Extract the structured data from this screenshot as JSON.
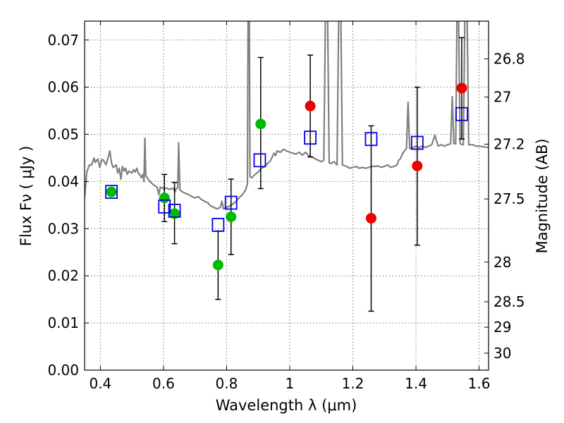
{
  "chart_data": {
    "type": "scatter",
    "xlabel": "Wavelength  λ (μm)",
    "ylabel": "Flux  Fν  ( μJy )",
    "y2label": "Magnitude (AB)",
    "xlim": [
      0.35,
      1.63
    ],
    "ylim": [
      0.0,
      0.074
    ],
    "grid": true,
    "x_ticks": [
      0.4,
      0.6,
      0.8,
      1.0,
      1.2,
      1.4,
      1.6
    ],
    "x_tick_labels": [
      "0.4",
      "0.6",
      "0.8",
      "1",
      "1.2",
      "1.4",
      "1.6"
    ],
    "y_ticks": [
      0.0,
      0.01,
      0.02,
      0.03,
      0.04,
      0.05,
      0.06,
      0.07
    ],
    "y_tick_labels": [
      "0.00",
      "0.01",
      "0.02",
      "0.03",
      "0.04",
      "0.05",
      "0.06",
      "0.07"
    ],
    "mag_ticks": [
      {
        "label": "26.8",
        "flux": 0.066
      },
      {
        "label": "27",
        "flux": 0.0579
      },
      {
        "label": "27.2",
        "flux": 0.0479
      },
      {
        "label": "27.5",
        "flux": 0.0363
      },
      {
        "label": "28",
        "flux": 0.0229
      },
      {
        "label": "28.5",
        "flux": 0.0145
      },
      {
        "label": "29",
        "flux": 0.0091
      },
      {
        "label": "30",
        "flux": 0.0036
      }
    ],
    "colors": {
      "sed": "#808080",
      "green": "#00bb00",
      "red": "#ee0000",
      "model": "#0000ee",
      "errorbar": "#000000",
      "grid": "#777777"
    },
    "sed_curve": [
      [
        0.35,
        0.0365
      ],
      [
        0.357,
        0.042
      ],
      [
        0.365,
        0.0435
      ],
      [
        0.372,
        0.0435
      ],
      [
        0.38,
        0.045
      ],
      [
        0.384,
        0.044
      ],
      [
        0.392,
        0.0448
      ],
      [
        0.398,
        0.043
      ],
      [
        0.405,
        0.0447
      ],
      [
        0.41,
        0.0445
      ],
      [
        0.418,
        0.0435
      ],
      [
        0.425,
        0.0452
      ],
      [
        0.43,
        0.0465
      ],
      [
        0.435,
        0.044
      ],
      [
        0.44,
        0.043
      ],
      [
        0.445,
        0.0432
      ],
      [
        0.45,
        0.0435
      ],
      [
        0.455,
        0.0418
      ],
      [
        0.46,
        0.0428
      ],
      [
        0.465,
        0.0405
      ],
      [
        0.47,
        0.0432
      ],
      [
        0.475,
        0.0422
      ],
      [
        0.48,
        0.0428
      ],
      [
        0.485,
        0.0415
      ],
      [
        0.49,
        0.0422
      ],
      [
        0.5,
        0.0418
      ],
      [
        0.505,
        0.0425
      ],
      [
        0.51,
        0.042
      ],
      [
        0.515,
        0.0428
      ],
      [
        0.52,
        0.0418
      ],
      [
        0.525,
        0.0415
      ],
      [
        0.53,
        0.0408
      ],
      [
        0.535,
        0.0415
      ],
      [
        0.538,
        0.04
      ],
      [
        0.541,
        0.0492
      ],
      [
        0.544,
        0.0412
      ],
      [
        0.55,
        0.0406
      ],
      [
        0.56,
        0.0398
      ],
      [
        0.57,
        0.0392
      ],
      [
        0.58,
        0.0388
      ],
      [
        0.585,
        0.0372
      ],
      [
        0.59,
        0.0388
      ],
      [
        0.6,
        0.0385
      ],
      [
        0.61,
        0.0386
      ],
      [
        0.62,
        0.0383
      ],
      [
        0.63,
        0.0386
      ],
      [
        0.637,
        0.0378
      ],
      [
        0.64,
        0.0385
      ],
      [
        0.645,
        0.0386
      ],
      [
        0.648,
        0.0482
      ],
      [
        0.652,
        0.0382
      ],
      [
        0.66,
        0.0378
      ],
      [
        0.67,
        0.0375
      ],
      [
        0.68,
        0.0372
      ],
      [
        0.69,
        0.0368
      ],
      [
        0.7,
        0.0365
      ],
      [
        0.71,
        0.0368
      ],
      [
        0.72,
        0.0362
      ],
      [
        0.73,
        0.0358
      ],
      [
        0.74,
        0.0355
      ],
      [
        0.75,
        0.0348
      ],
      [
        0.76,
        0.0345
      ],
      [
        0.77,
        0.0342
      ],
      [
        0.78,
        0.0345
      ],
      [
        0.785,
        0.0358
      ],
      [
        0.79,
        0.0342
      ],
      [
        0.8,
        0.0345
      ],
      [
        0.81,
        0.0348
      ],
      [
        0.82,
        0.0352
      ],
      [
        0.83,
        0.0358
      ],
      [
        0.84,
        0.0366
      ],
      [
        0.85,
        0.0372
      ],
      [
        0.86,
        0.0382
      ],
      [
        0.866,
        0.0395
      ],
      [
        0.868,
        0.075
      ],
      [
        0.872,
        0.075
      ],
      [
        0.874,
        0.041
      ],
      [
        0.88,
        0.0408
      ],
      [
        0.89,
        0.0415
      ],
      [
        0.9,
        0.042
      ],
      [
        0.91,
        0.0428
      ],
      [
        0.92,
        0.0432
      ],
      [
        0.93,
        0.0438
      ],
      [
        0.94,
        0.0445
      ],
      [
        0.95,
        0.046
      ],
      [
        0.955,
        0.0455
      ],
      [
        0.96,
        0.0465
      ],
      [
        0.97,
        0.0462
      ],
      [
        0.98,
        0.0468
      ],
      [
        0.99,
        0.0465
      ],
      [
        1.0,
        0.0462
      ],
      [
        1.01,
        0.046
      ],
      [
        1.02,
        0.0458
      ],
      [
        1.03,
        0.0462
      ],
      [
        1.04,
        0.0456
      ],
      [
        1.05,
        0.0462
      ],
      [
        1.06,
        0.0455
      ],
      [
        1.07,
        0.0452
      ],
      [
        1.08,
        0.0448
      ],
      [
        1.09,
        0.0445
      ],
      [
        1.1,
        0.0442
      ],
      [
        1.108,
        0.0445
      ],
      [
        1.113,
        0.075
      ],
      [
        1.12,
        0.075
      ],
      [
        1.125,
        0.044
      ],
      [
        1.13,
        0.0438
      ],
      [
        1.14,
        0.0442
      ],
      [
        1.15,
        0.0435
      ],
      [
        1.155,
        0.075
      ],
      [
        1.162,
        0.075
      ],
      [
        1.167,
        0.0435
      ],
      [
        1.18,
        0.0432
      ],
      [
        1.19,
        0.0428
      ],
      [
        1.2,
        0.043
      ],
      [
        1.21,
        0.0432
      ],
      [
        1.22,
        0.0428
      ],
      [
        1.23,
        0.043
      ],
      [
        1.24,
        0.0428
      ],
      [
        1.25,
        0.043
      ],
      [
        1.26,
        0.0432
      ],
      [
        1.27,
        0.0432
      ],
      [
        1.28,
        0.0433
      ],
      [
        1.29,
        0.043
      ],
      [
        1.3,
        0.0432
      ],
      [
        1.31,
        0.0435
      ],
      [
        1.32,
        0.043
      ],
      [
        1.33,
        0.0432
      ],
      [
        1.34,
        0.0435
      ],
      [
        1.345,
        0.0445
      ],
      [
        1.35,
        0.0448
      ],
      [
        1.355,
        0.0455
      ],
      [
        1.36,
        0.0462
      ],
      [
        1.37,
        0.047
      ],
      [
        1.375,
        0.0568
      ],
      [
        1.38,
        0.047
      ],
      [
        1.39,
        0.0472
      ],
      [
        1.4,
        0.0475
      ],
      [
        1.41,
        0.0472
      ],
      [
        1.42,
        0.0475
      ],
      [
        1.43,
        0.0472
      ],
      [
        1.44,
        0.0475
      ],
      [
        1.45,
        0.0478
      ],
      [
        1.46,
        0.0498
      ],
      [
        1.47,
        0.0475
      ],
      [
        1.48,
        0.0478
      ],
      [
        1.49,
        0.0475
      ],
      [
        1.5,
        0.0478
      ],
      [
        1.51,
        0.048
      ],
      [
        1.515,
        0.058
      ],
      [
        1.52,
        0.048
      ],
      [
        1.526,
        0.048
      ],
      [
        1.53,
        0.075
      ],
      [
        1.535,
        0.075
      ],
      [
        1.54,
        0.048
      ],
      [
        1.55,
        0.0478
      ],
      [
        1.555,
        0.075
      ],
      [
        1.562,
        0.075
      ],
      [
        1.567,
        0.0478
      ],
      [
        1.58,
        0.0478
      ],
      [
        1.59,
        0.0475
      ],
      [
        1.6,
        0.0475
      ],
      [
        1.63,
        0.0472
      ]
    ],
    "series": [
      {
        "marker": "circle",
        "color": "#00bb00",
        "points": [
          {
            "x": 0.435,
            "y": 0.0378
          },
          {
            "x": 0.603,
            "y": 0.0365
          },
          {
            "x": 0.635,
            "y": 0.0332
          },
          {
            "x": 0.773,
            "y": 0.0223
          },
          {
            "x": 0.814,
            "y": 0.0325
          },
          {
            "x": 0.908,
            "y": 0.0522
          }
        ]
      },
      {
        "marker": "circle",
        "color": "#ee0000",
        "points": [
          {
            "x": 1.065,
            "y": 0.056
          },
          {
            "x": 1.258,
            "y": 0.0322
          },
          {
            "x": 1.404,
            "y": 0.0433
          },
          {
            "x": 1.545,
            "y": 0.0598
          }
        ]
      },
      {
        "marker": "open-square",
        "color": "#0000ee",
        "points": [
          {
            "x": 0.435,
            "y": 0.0378
          },
          {
            "x": 0.603,
            "y": 0.0347
          },
          {
            "x": 0.635,
            "y": 0.0338
          },
          {
            "x": 0.773,
            "y": 0.0308
          },
          {
            "x": 0.814,
            "y": 0.0355
          },
          {
            "x": 0.905,
            "y": 0.0445
          },
          {
            "x": 1.065,
            "y": 0.0493
          },
          {
            "x": 1.258,
            "y": 0.049
          },
          {
            "x": 1.404,
            "y": 0.0482
          },
          {
            "x": 1.545,
            "y": 0.0543
          }
        ]
      }
    ],
    "error_bars": [
      {
        "x": 0.603,
        "low": 0.0315,
        "high": 0.0415
      },
      {
        "x": 0.635,
        "low": 0.0268,
        "high": 0.0398
      },
      {
        "x": 0.773,
        "low": 0.015,
        "high": 0.0295
      },
      {
        "x": 0.814,
        "low": 0.0245,
        "high": 0.0405
      },
      {
        "x": 0.908,
        "low": 0.0385,
        "high": 0.0663
      },
      {
        "x": 1.065,
        "low": 0.0452,
        "high": 0.0668
      },
      {
        "x": 1.258,
        "low": 0.0125,
        "high": 0.0518
      },
      {
        "x": 1.404,
        "low": 0.0265,
        "high": 0.06
      },
      {
        "x": 1.545,
        "low": 0.049,
        "high": 0.0705
      }
    ]
  }
}
